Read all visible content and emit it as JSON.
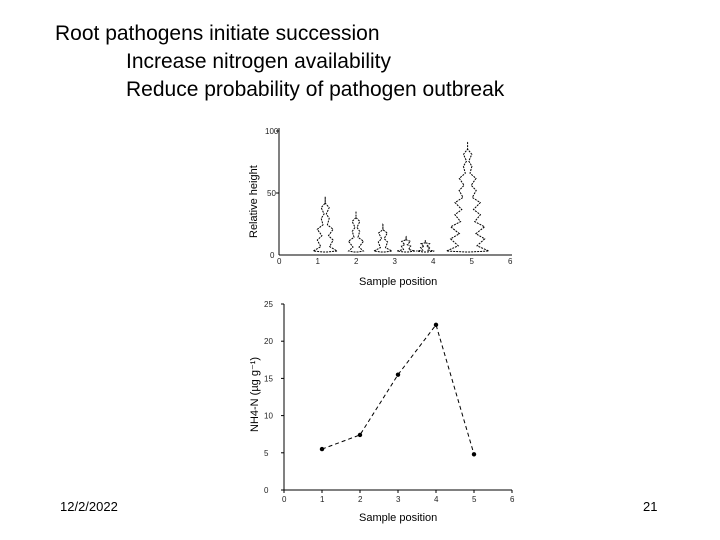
{
  "slide": {
    "title": "Root pathogens initiate succession",
    "bullets": [
      "Increase nitrogen availability",
      "Reduce probability of pathogen outbreak"
    ],
    "date": "12/2/2022",
    "page_number": "21"
  },
  "chart_data": [
    {
      "type": "illustration",
      "ylabel": "Relative height",
      "xlabel": "Sample position",
      "ylim": [
        0,
        100
      ],
      "yticks": [
        "0",
        "50",
        "100"
      ],
      "xticks": [
        "0",
        "1",
        "2",
        "3",
        "4",
        "5",
        "6"
      ],
      "tree_heights": [
        {
          "x": 1.2,
          "height": 47
        },
        {
          "x": 2.0,
          "height": 35
        },
        {
          "x": 2.7,
          "height": 25
        },
        {
          "x": 3.3,
          "height": 15
        },
        {
          "x": 3.8,
          "height": 12
        },
        {
          "x": 4.9,
          "height": 91
        }
      ]
    },
    {
      "type": "line",
      "xlabel": "Sample position",
      "ylabel": "NH4-N (µg g⁻¹)",
      "xlim": [
        0,
        6
      ],
      "ylim": [
        0,
        25
      ],
      "xticks": [
        "0",
        "1",
        "2",
        "3",
        "4",
        "5",
        "6"
      ],
      "yticks": [
        "0",
        "5",
        "10",
        "15",
        "20",
        "25"
      ],
      "x": [
        1,
        2,
        3,
        4,
        5
      ],
      "y": [
        5.5,
        7.4,
        15.5,
        22.2,
        4.8
      ],
      "linestyle": "dashed"
    }
  ]
}
